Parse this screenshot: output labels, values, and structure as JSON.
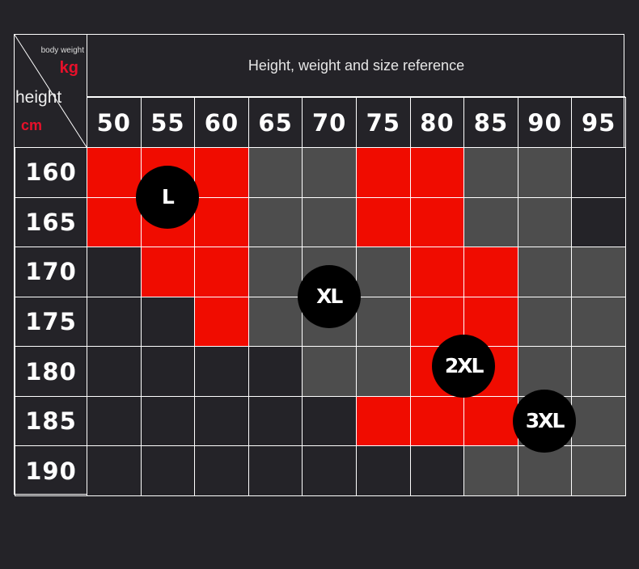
{
  "chart_data": {
    "type": "heatmap",
    "title": "Height, weight and size reference",
    "xlabel": "body weight",
    "xunit": "kg",
    "ylabel": "height",
    "yunit": "cm",
    "x": [
      "50",
      "55",
      "60",
      "65",
      "70",
      "75",
      "80",
      "85",
      "90",
      "95"
    ],
    "y": [
      "160",
      "165",
      "170",
      "175",
      "180",
      "185",
      "190"
    ],
    "colors": {
      "R": "#f00c00",
      "G": "#4d4d4d",
      "D": "#242328"
    },
    "cells": [
      [
        "R",
        "R",
        "R",
        "G",
        "G",
        "R",
        "R",
        "G",
        "G",
        "D"
      ],
      [
        "R",
        "R",
        "R",
        "G",
        "G",
        "R",
        "R",
        "G",
        "G",
        "D"
      ],
      [
        "D",
        "R",
        "R",
        "G",
        "G",
        "G",
        "R",
        "R",
        "G",
        "G"
      ],
      [
        "D",
        "D",
        "R",
        "G",
        "G",
        "G",
        "R",
        "R",
        "G",
        "G"
      ],
      [
        "D",
        "D",
        "D",
        "D",
        "G",
        "G",
        "R",
        "R",
        "G",
        "G"
      ],
      [
        "D",
        "D",
        "D",
        "D",
        "D",
        "R",
        "R",
        "R",
        "G",
        "G"
      ],
      [
        "D",
        "D",
        "D",
        "D",
        "D",
        "D",
        "D",
        "G",
        "G",
        "G"
      ]
    ],
    "size_labels": [
      {
        "label": "L",
        "weight": 55,
        "height": 162.5
      },
      {
        "label": "XL",
        "weight": 70,
        "height": 172.5
      },
      {
        "label": "2XL",
        "weight": 82.5,
        "height": 179.5
      },
      {
        "label": "3XL",
        "weight": 90,
        "height": 185
      }
    ]
  }
}
